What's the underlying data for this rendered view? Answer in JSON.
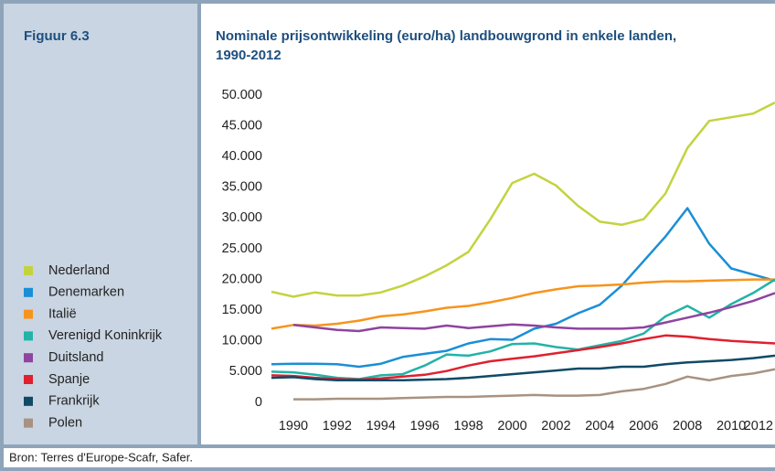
{
  "figure_label": "Figuur 6.3",
  "source": "Bron: Terres d'Europe-Scafr, Safer.",
  "chart_data": {
    "type": "line",
    "title": [
      "Nominale prijsontwikkeling (euro/ha) landbouwgrond in enkele landen,",
      "1990-2012"
    ],
    "x": [
      1989,
      1990,
      1991,
      1992,
      1993,
      1994,
      1995,
      1996,
      1997,
      1998,
      1999,
      2000,
      2001,
      2002,
      2003,
      2004,
      2005,
      2006,
      2007,
      2008,
      2009,
      2010,
      2011,
      2012
    ],
    "xlim": [
      1989,
      2012
    ],
    "xticks": [
      1990,
      1992,
      1994,
      1996,
      1998,
      2000,
      2002,
      2004,
      2006,
      2008,
      2010,
      2012
    ],
    "ylim": [
      0,
      50000
    ],
    "yticks": [
      0,
      {
        "value": 5000,
        "label": "5.000"
      },
      {
        "value": 10000,
        "label": "10.000"
      },
      {
        "value": 15000,
        "label": "15.000"
      },
      {
        "value": 20000,
        "label": "20.000"
      },
      {
        "value": 25000,
        "label": "25.000"
      },
      {
        "value": 30000,
        "label": "30.000"
      },
      {
        "value": 35000,
        "label": "35.000"
      },
      {
        "value": 40000,
        "label": "40.000"
      },
      {
        "value": 45000,
        "label": "45.000"
      },
      {
        "value": 50000,
        "label": "50.000"
      }
    ],
    "grid": false,
    "series": [
      {
        "name": "Nederland",
        "color": "#c3d33f",
        "values": [
          18000,
          17200,
          17900,
          17400,
          17400,
          17900,
          19000,
          20500,
          22300,
          24500,
          29800,
          35700,
          37200,
          35300,
          32000,
          29400,
          28900,
          29800,
          34000,
          41400,
          45800,
          46400,
          47000,
          48800
        ]
      },
      {
        "name": "Denemarken",
        "color": "#1a8fd6",
        "values": [
          6200,
          6300,
          6300,
          6200,
          5800,
          6300,
          7400,
          7900,
          8400,
          9600,
          10300,
          10200,
          12000,
          12800,
          14500,
          15900,
          19000,
          23000,
          27000,
          31600,
          25800,
          21800,
          20800,
          19800
        ]
      },
      {
        "name": "Italië",
        "color": "#f7941d",
        "values": [
          12000,
          12600,
          12500,
          12800,
          13300,
          14000,
          14300,
          14800,
          15400,
          15700,
          16300,
          17000,
          17800,
          18400,
          18900,
          19000,
          19200,
          19500,
          19700,
          19700,
          19800,
          19900,
          20000,
          20000
        ]
      },
      {
        "name": "Verenigd Koninkrijk",
        "color": "#22b3a8",
        "values": [
          5000,
          4900,
          4500,
          4000,
          3800,
          4400,
          4600,
          6000,
          7800,
          7600,
          8300,
          9500,
          9600,
          9000,
          8600,
          9300,
          10000,
          11200,
          14000,
          15700,
          13800,
          16000,
          17800,
          20000
        ]
      },
      {
        "name": "Duitsland",
        "color": "#8e44a0",
        "values": [
          null,
          12600,
          12200,
          11800,
          11600,
          12200,
          12100,
          12000,
          12500,
          12100,
          12400,
          12700,
          12500,
          12200,
          12000,
          12000,
          12000,
          12200,
          13000,
          13800,
          14600,
          15500,
          16500,
          17800
        ]
      },
      {
        "name": "Spanje",
        "color": "#e0202e",
        "values": [
          4400,
          4300,
          4000,
          3800,
          3700,
          3900,
          4200,
          4500,
          5100,
          6000,
          6700,
          7100,
          7500,
          8000,
          8500,
          9000,
          9600,
          10300,
          10900,
          10700,
          10300,
          10000,
          9800,
          9600
        ]
      },
      {
        "name": "Frankrijk",
        "color": "#0f4a66",
        "values": [
          4000,
          4100,
          3800,
          3600,
          3600,
          3600,
          3600,
          3700,
          3800,
          4000,
          4300,
          4600,
          4900,
          5200,
          5500,
          5500,
          5800,
          5800,
          6200,
          6500,
          6700,
          6900,
          7200,
          7600
        ]
      },
      {
        "name": "Polen",
        "color": "#a89282",
        "values": [
          null,
          500,
          500,
          600,
          600,
          600,
          700,
          800,
          900,
          900,
          1000,
          1100,
          1200,
          1100,
          1100,
          1200,
          1800,
          2200,
          3000,
          4200,
          3600,
          4300,
          4700,
          5400
        ]
      }
    ]
  }
}
